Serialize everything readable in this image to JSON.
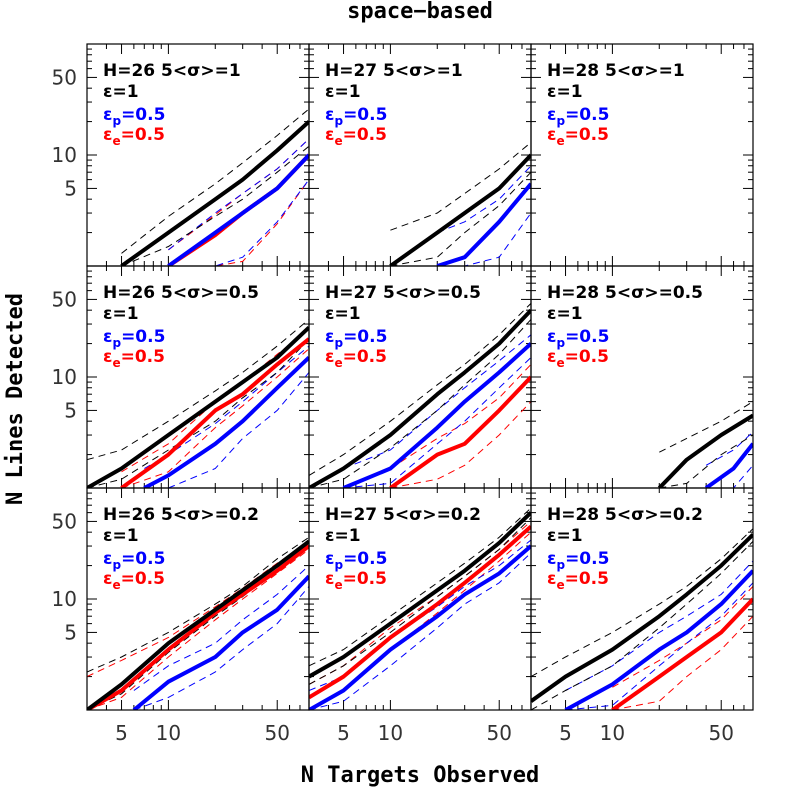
{
  "chart_data": {
    "type": "line",
    "title": "space−based",
    "xlabel": "N Targets Observed",
    "ylabel": "N Lines Detected",
    "x_scale": "log",
    "y_scale": "log",
    "xlim": [
      3,
      80
    ],
    "ylim": [
      1,
      100
    ],
    "x_ticks": [
      5,
      10,
      50
    ],
    "x_tick_labels": [
      "5",
      "10",
      "50"
    ],
    "y_ticks": [
      5,
      10,
      50
    ],
    "y_tick_labels": [
      "5",
      "10",
      "50"
    ],
    "colors": {
      "eps": "#000000",
      "eps_p": "#0000ff",
      "eps_e": "#ff0000"
    },
    "labels": {
      "eps": "ε=1",
      "eps_p_sym": "ε",
      "eps_p_sub": "p",
      "eps_p_val": "=0.5",
      "eps_e_sym": "ε",
      "eps_e_sub": "e",
      "eps_e_val": "=0.5"
    },
    "panels": [
      {
        "label": "H=26  5<σ>=1",
        "series": {
          "eps": {
            "x": [
              5,
              10,
              20,
              30,
              50,
              80
            ],
            "y": [
              1,
              2,
              4,
              6,
              11,
              20
            ],
            "lo": [
              1,
              1.5,
              2.8,
              4,
              7,
              12
            ],
            "hi": [
              1.3,
              2.8,
              5.5,
              8.5,
              15,
              26
            ]
          },
          "eps_p": {
            "x": [
              10,
              20,
              30,
              50,
              80
            ],
            "y": [
              1,
              2,
              3,
              5,
              10
            ],
            "lo": [
              1,
              1,
              1.2,
              2.5,
              6
            ],
            "hi": [
              1.4,
              3,
              4.5,
              7.5,
              14
            ]
          },
          "eps_e": {
            "x": [
              10,
              20,
              30,
              50,
              80
            ],
            "y": [
              1,
              1.9,
              3,
              5,
              10
            ],
            "lo": [
              1,
              1,
              1.1,
              2.4,
              6
            ],
            "hi": [
              1.4,
              2.9,
              4.5,
              7.5,
              14
            ]
          }
        }
      },
      {
        "label": "H=27  5<σ>=1",
        "series": {
          "eps": {
            "x": [
              10,
              20,
              30,
              50,
              80
            ],
            "y": [
              1,
              2,
              3,
              5,
              10
            ],
            "lo": [
              1,
              1.2,
              2,
              3.5,
              7
            ],
            "hi": [
              2.1,
              3,
              4.5,
              7.5,
              13
            ]
          },
          "eps_p": {
            "x": [
              20,
              30,
              50,
              80
            ],
            "y": [
              1,
              1.2,
              2.5,
              5.5
            ],
            "lo": [
              1,
              1,
              1.2,
              3
            ],
            "hi": [
              2,
              2.5,
              4,
              8
            ]
          },
          "eps_e": null
        }
      },
      {
        "label": "H=28  5<σ>=1",
        "series": {
          "eps": null,
          "eps_p": null,
          "eps_e": null
        }
      },
      {
        "label": "H=26  5<σ>=0.5",
        "series": {
          "eps": {
            "x": [
              3,
              5,
              10,
              20,
              30,
              50,
              80
            ],
            "y": [
              1,
              1.5,
              3,
              6,
              9,
              15,
              28
            ],
            "lo": [
              1,
              1.2,
              2.2,
              4,
              6.5,
              11,
              22
            ],
            "hi": [
              1.8,
              2.2,
              4,
              7.5,
              11,
              19,
              33
            ]
          },
          "eps_p": {
            "x": [
              7,
              10,
              20,
              30,
              50,
              80
            ],
            "y": [
              1,
              1.3,
              2.5,
              4,
              8,
              15
            ],
            "lo": [
              1,
              1,
              1.5,
              2.8,
              5,
              11
            ],
            "hi": [
              1.5,
              2,
              3.8,
              6,
              11,
              19
            ]
          },
          "eps_e": {
            "x": [
              5,
              10,
              20,
              30,
              50,
              80
            ],
            "y": [
              1,
              2,
              5,
              7,
              13,
              22
            ],
            "lo": [
              1,
              1.4,
              3.5,
              5.5,
              10,
              18
            ],
            "hi": [
              1.4,
              2.5,
              6,
              9,
              16,
              27
            ]
          }
        }
      },
      {
        "label": "H=27  5<σ>=0.5",
        "series": {
          "eps": {
            "x": [
              3,
              5,
              10,
              20,
              30,
              50,
              80
            ],
            "y": [
              1,
              1.5,
              3,
              7,
              11,
              20,
              40
            ],
            "lo": [
              1,
              1.2,
              2.3,
              5,
              8.5,
              16,
              33
            ],
            "hi": [
              1.3,
              2,
              4,
              8.5,
              13,
              24,
              46
            ]
          },
          "eps_p": {
            "x": [
              5,
              10,
              20,
              30,
              50,
              80
            ],
            "y": [
              1,
              1.5,
              3.5,
              6,
              11,
              20
            ],
            "lo": [
              1,
              1.1,
              2.5,
              4,
              8,
              15
            ],
            "hi": [
              1.5,
              2.2,
              5,
              8,
              14,
              24
            ]
          },
          "eps_e": {
            "x": [
              10,
              20,
              30,
              50,
              80
            ],
            "y": [
              1,
              2,
              2.5,
              5,
              10
            ],
            "lo": [
              1,
              1.2,
              1.6,
              3,
              6
            ],
            "hi": [
              1.5,
              2.8,
              3.8,
              6.5,
              13
            ]
          }
        }
      },
      {
        "label": "H=28  5<σ>=0.5",
        "series": {
          "eps": {
            "x": [
              20,
              30,
              50,
              80
            ],
            "y": [
              1,
              1.8,
              3,
              4.5
            ],
            "lo": [
              1,
              1.1,
              2,
              3
            ],
            "hi": [
              2.1,
              2.8,
              4,
              6
            ]
          },
          "eps_p": {
            "x": [
              40,
              60,
              80
            ],
            "y": [
              1,
              1.5,
              2.5
            ],
            "lo": [
              1,
              1,
              1.6
            ],
            "hi": [
              1.6,
              2.2,
              3.2
            ]
          },
          "eps_e": null
        }
      },
      {
        "label": "H=26  5<σ>=0.2",
        "series": {
          "eps": {
            "x": [
              3,
              5,
              10,
              20,
              30,
              50,
              80
            ],
            "y": [
              1,
              1.7,
              4,
              8,
              12,
              20,
              33
            ],
            "lo": [
              1,
              1.4,
              3.3,
              7,
              10.5,
              18,
              30
            ],
            "hi": [
              2.2,
              3,
              5,
              9,
              13,
              23,
              36
            ]
          },
          "eps_p": {
            "x": [
              6,
              10,
              20,
              30,
              50,
              80
            ],
            "y": [
              1,
              1.8,
              3,
              5,
              8,
              16
            ],
            "lo": [
              1,
              1.3,
              2.2,
              3.5,
              6,
              13
            ],
            "hi": [
              1.5,
              2.5,
              4,
              6.5,
              11,
              20
            ]
          },
          "eps_e": {
            "x": [
              3,
              5,
              10,
              20,
              30,
              50,
              80
            ],
            "y": [
              1,
              1.5,
              3.5,
              7.5,
              11,
              18,
              30
            ],
            "lo": [
              1,
              1.3,
              3,
              6.5,
              10,
              17,
              28
            ],
            "hi": [
              2,
              2.8,
              4.5,
              8.5,
              12.5,
              21,
              33
            ]
          }
        }
      },
      {
        "label": "H=27  5<σ>=0.2",
        "series": {
          "eps": {
            "x": [
              3,
              5,
              10,
              20,
              30,
              50,
              80
            ],
            "y": [
              2,
              3,
              6,
              12,
              18,
              32,
              60
            ],
            "lo": [
              1.7,
              2.5,
              5,
              10.5,
              16,
              28,
              54
            ],
            "hi": [
              2.5,
              3.5,
              7,
              14,
              21,
              36,
              66
            ]
          },
          "eps_p": {
            "x": [
              3,
              5,
              10,
              20,
              30,
              50,
              80
            ],
            "y": [
              1,
              1.5,
              3.5,
              7,
              11,
              17,
              30
            ],
            "lo": [
              1,
              1.2,
              2.5,
              5.5,
              9,
              14,
              26
            ],
            "hi": [
              1.5,
              2,
              4.5,
              8.5,
              13,
              20,
              34
            ]
          },
          "eps_e": {
            "x": [
              3,
              5,
              10,
              20,
              30,
              50,
              80
            ],
            "y": [
              1.3,
              2,
              4.5,
              9,
              14,
              25,
              45
            ],
            "lo": [
              1,
              1.5,
              3.5,
              7.5,
              12,
              22,
              40
            ],
            "hi": [
              1.7,
              2.5,
              5.5,
              10.5,
              16,
              28,
              50
            ]
          }
        }
      },
      {
        "label": "H=28  5<σ>=0.2",
        "series": {
          "eps": {
            "x": [
              3,
              5,
              10,
              20,
              30,
              50,
              80
            ],
            "y": [
              1.2,
              2,
              3.5,
              7,
              11,
              20,
              38
            ],
            "lo": [
              1,
              1.5,
              2.5,
              5.5,
              9,
              17,
              33
            ],
            "hi": [
              2,
              3,
              5,
              9,
              13,
              23,
              43
            ]
          },
          "eps_p": {
            "x": [
              5,
              10,
              20,
              30,
              50,
              80
            ],
            "y": [
              1,
              1.7,
              3.5,
              5,
              9,
              18
            ],
            "lo": [
              1,
              1.1,
              2.5,
              4,
              7,
              14
            ],
            "hi": [
              1.5,
              2.5,
              5,
              7,
              11,
              22
            ]
          },
          "eps_e": {
            "x": [
              10,
              20,
              30,
              50,
              80
            ],
            "y": [
              1,
              2,
              3,
              5,
              10
            ],
            "lo": [
              1,
              1.2,
              2,
              3.5,
              7
            ],
            "hi": [
              1.6,
              2.8,
              4,
              6.5,
              13
            ]
          }
        }
      }
    ]
  }
}
